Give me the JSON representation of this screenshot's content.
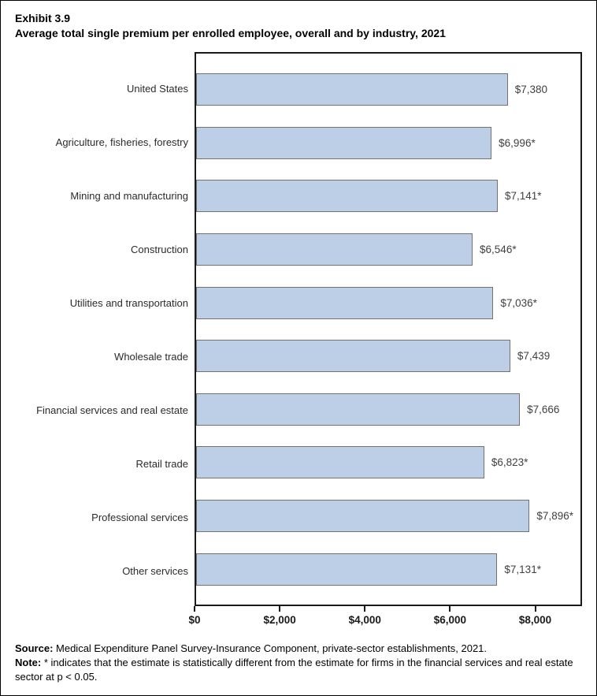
{
  "title": {
    "exhibit": "Exhibit 3.9",
    "text": "Average total single premium per enrolled employee, overall and by industry, 2021"
  },
  "chart_data": {
    "type": "bar",
    "orientation": "horizontal",
    "title": "Average total single premium per enrolled employee, overall and by industry, 2021",
    "categories": [
      "United States",
      "Agriculture, fisheries, forestry",
      "Mining and manufacturing",
      "Construction",
      "Utilities and transportation",
      "Wholesale trade",
      "Financial services and real estate",
      "Retail trade",
      "Professional services",
      "Other services"
    ],
    "values": [
      7380,
      6996,
      7141,
      6546,
      7036,
      7439,
      7666,
      6823,
      7896,
      7131
    ],
    "value_labels": [
      "$7,380",
      "$6,996*",
      "$7,141*",
      "$6,546*",
      "$7,036*",
      "$7,439",
      "$7,666",
      "$6,823*",
      "$7,896*",
      "$7,131*"
    ],
    "xlim": [
      0,
      9100
    ],
    "x_ticks": [
      {
        "value": 0,
        "label": "$0"
      },
      {
        "value": 2000,
        "label": "$2,000"
      },
      {
        "value": 4000,
        "label": "$4,000"
      },
      {
        "value": 6000,
        "label": "$6,000"
      },
      {
        "value": 8000,
        "label": "$8,000"
      }
    ],
    "grid": false,
    "legend": "none",
    "bar_fill": "#bccfe6",
    "bar_border": "#727272"
  },
  "footer": {
    "source_label": "Source:",
    "source_text": " Medical Expenditure Panel Survey-Insurance Component, private-sector establishments, 2021.",
    "note_label": "Note:",
    "note_text": "  * indicates that the estimate is statistically different from the estimate for firms in the financial services and real estate sector at p < 0.05."
  }
}
